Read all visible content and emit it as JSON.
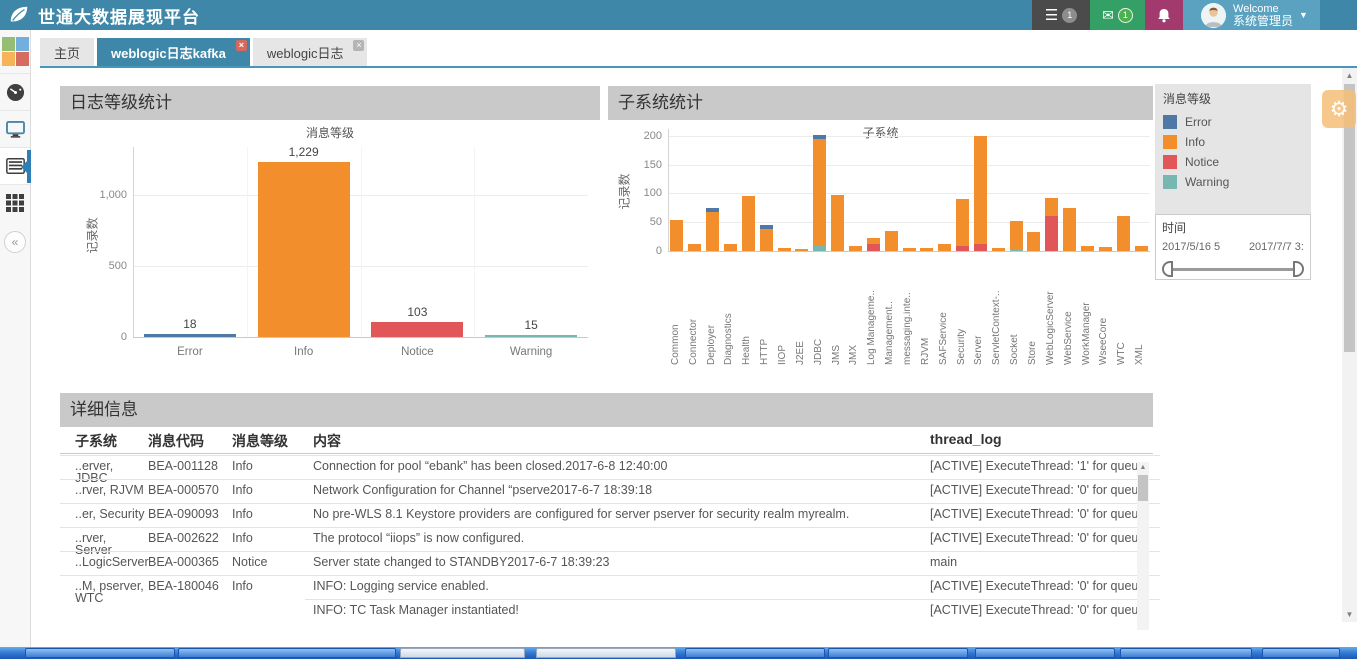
{
  "topbar": {
    "title": "世通大数据展现平台",
    "menu_badge": "1",
    "mail_badge": "1",
    "welcome_line1": "Welcome",
    "welcome_line2": "系统管理员"
  },
  "icons": {
    "leaf-logo-icon": "leaf shape",
    "menu-icon": "☰",
    "mail-icon": "✉",
    "bell-icon": "bell shape",
    "caret-down-icon": "▼",
    "gauge-icon": "gauge shape",
    "monitor-icon": "monitor shape",
    "report-icon": "list panel shape",
    "grid-icon": "▦",
    "collapse-icon": "«",
    "gear-icon": "⚙",
    "scroll-up-icon": "▲",
    "scroll-down-icon": "▼",
    "close-icon": "×"
  },
  "tabs": [
    {
      "label": "主页",
      "active": false,
      "closable": false
    },
    {
      "label": "weblogic日志kafka",
      "active": true,
      "closable": true
    },
    {
      "label": "weblogic日志",
      "active": false,
      "closable": true
    }
  ],
  "panels": {
    "log_level_title": "日志等级统计",
    "subsystem_title": "子系统统计",
    "detail_title": "详细信息"
  },
  "legend": {
    "title": "消息等级",
    "items": [
      {
        "label": "Error",
        "color": "#4e79a7"
      },
      {
        "label": "Info",
        "color": "#f28e2b"
      },
      {
        "label": "Notice",
        "color": "#e15759"
      },
      {
        "label": "Warning",
        "color": "#76b7b2"
      }
    ]
  },
  "time_filter": {
    "title": "时间",
    "start": "2017/5/16 5",
    "end": "2017/7/7 3:"
  },
  "chart_data": [
    {
      "type": "bar",
      "title": "消息等级",
      "ylabel": "记录数",
      "categories": [
        "Error",
        "Info",
        "Notice",
        "Warning"
      ],
      "values": [
        18,
        1229,
        103,
        15
      ],
      "value_labels": [
        "18",
        "1,229",
        "103",
        "15"
      ],
      "bar_colors": [
        "#4e79a7",
        "#f28e2b",
        "#e15759",
        "#76b7b2"
      ],
      "yticks": [
        0,
        500,
        1000
      ],
      "ylim": [
        0,
        1450
      ],
      "grid": true
    },
    {
      "type": "bar",
      "subtype": "stacked",
      "title": "子系统",
      "ylabel": "记录数",
      "categories": [
        "Common",
        "Connector",
        "Deployer",
        "Diagnostics",
        "Health",
        "HTTP",
        "IIOP",
        "J2EE",
        "JDBC",
        "JMS",
        "JMX",
        "Log Manageme..",
        "Management..",
        "messaging.inte..",
        "RJVM",
        "SAFService",
        "Security",
        "Server",
        "ServletContext-..",
        "Socket",
        "Store",
        "WebLogicServer",
        "WebService",
        "WorkManager",
        "WseeCore",
        "WTC",
        "XML"
      ],
      "series": [
        {
          "name": "Warning",
          "color": "#76b7b2",
          "values": [
            0,
            0,
            0,
            0,
            0,
            0,
            0,
            0,
            8,
            0,
            0,
            0,
            0,
            0,
            0,
            0,
            0,
            0,
            0,
            3,
            0,
            0,
            0,
            0,
            0,
            0,
            0
          ]
        },
        {
          "name": "Notice",
          "color": "#e15759",
          "values": [
            0,
            0,
            0,
            0,
            0,
            0,
            0,
            0,
            0,
            0,
            0,
            13,
            0,
            0,
            0,
            0,
            8,
            12,
            0,
            0,
            0,
            60,
            0,
            0,
            0,
            0,
            0
          ]
        },
        {
          "name": "Info",
          "color": "#f28e2b",
          "values": [
            54,
            12,
            68,
            12,
            95,
            38,
            5,
            3,
            185,
            98,
            8,
            10,
            35,
            5,
            6,
            12,
            82,
            188,
            6,
            48,
            33,
            31,
            75,
            8,
            7,
            60,
            8
          ]
        },
        {
          "name": "Error",
          "color": "#4e79a7",
          "values": [
            0,
            0,
            7,
            0,
            0,
            7,
            0,
            0,
            7,
            0,
            0,
            0,
            0,
            0,
            0,
            0,
            0,
            0,
            0,
            0,
            0,
            0,
            0,
            0,
            0,
            0,
            0
          ]
        }
      ],
      "yticks": [
        0,
        50,
        100,
        150,
        200
      ],
      "ylim": [
        0,
        210
      ],
      "grid": true,
      "legend_position": "right"
    }
  ],
  "table": {
    "columns": [
      "子系统",
      "消息代码",
      "消息等级",
      "内容",
      "thread_log"
    ],
    "rows": [
      [
        "..erver, JDBC",
        "BEA-001128",
        "Info",
        "Connection for pool “ebank” has been closed.2017-6-8 12:40:00",
        "[ACTIVE] ExecuteThread: '1' for queu"
      ],
      [
        "..rver, RJVM",
        "BEA-000570",
        "Info",
        "Network Configuration for Channel “pserve2017-6-7 18:39:18",
        "[ACTIVE] ExecuteThread: '0' for queu"
      ],
      [
        "..er, Security",
        "BEA-090093",
        "Info",
        "No pre-WLS 8.1 Keystore providers are configured for server pserver for security realm myrealm.",
        "[ACTIVE] ExecuteThread: '0' for queu"
      ],
      [
        "..rver, Server",
        "BEA-002622",
        "Info",
        "The protocol “iiops” is now configured.",
        "[ACTIVE] ExecuteThread: '0' for queu"
      ],
      [
        "..LogicServer",
        "BEA-000365",
        "Notice",
        "Server state changed to STANDBY2017-6-7 18:39:23",
        "main"
      ],
      [
        "..M, pserver, WTC",
        "BEA-180046",
        "Info",
        "INFO: Logging service enabled.",
        "[ACTIVE] ExecuteThread: '0' for queu"
      ],
      [
        "",
        "",
        "",
        "INFO: TC Task Manager instantiated!",
        "[ACTIVE] ExecuteThread: '0' for queu"
      ]
    ]
  },
  "colors": {
    "topbar": "#3e87a8",
    "active_tab": "#3e87a8",
    "panel_header": "#c9c9c9",
    "error": "#4e79a7",
    "info": "#f28e2b",
    "notice": "#e15759",
    "warning": "#76b7b2"
  }
}
